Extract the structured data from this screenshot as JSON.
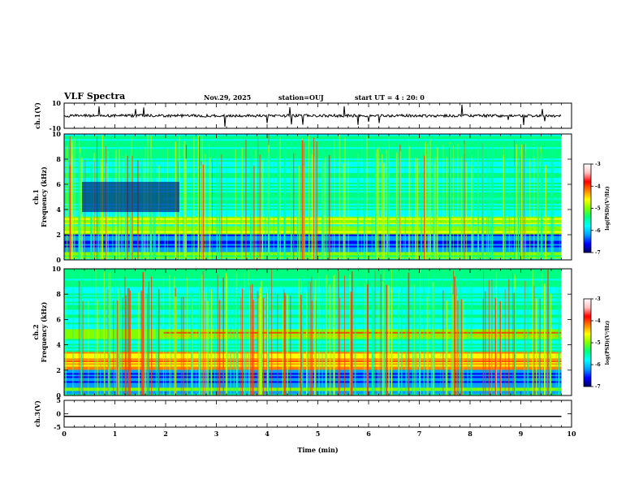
{
  "chart_data": {
    "type": "heatmap",
    "title": "VLF Spectra",
    "date": "Nov.29, 2025",
    "station": "station=OUJ",
    "start_ut": "start UT =   4 : 20: 0",
    "xlabel": "Time (min)",
    "xlim": [
      0,
      10
    ],
    "x_ticks": [
      "0",
      "1",
      "2",
      "3",
      "4",
      "5",
      "6",
      "7",
      "8",
      "9",
      "10"
    ],
    "panels": [
      {
        "id": "ch1-wave",
        "ylabel": "ch.1(V)",
        "ylim": [
          -10,
          10
        ],
        "y_ticks": [
          "10",
          "-10"
        ]
      },
      {
        "id": "ch1-spec",
        "ylabel_line1": "ch.1",
        "ylabel_line2": "Frequency (kHz)",
        "ylim": [
          0,
          10
        ],
        "y_ticks": [
          "0",
          "2",
          "4",
          "6",
          "8",
          "10"
        ],
        "bands_khz": [
          [
            2.2,
            3.3
          ],
          [
            4.6,
            5.1
          ]
        ]
      },
      {
        "id": "ch2-spec",
        "ylabel_line1": "ch.2",
        "ylabel_line2": "Frequency (kHz)",
        "ylim": [
          0,
          10
        ],
        "y_ticks": [
          "0",
          "2",
          "4",
          "6",
          "8",
          "10"
        ],
        "bands_khz": [
          [
            2.2,
            3.2
          ],
          [
            4.7,
            5.2
          ]
        ]
      },
      {
        "id": "ch3-wave",
        "ylabel": "ch.3(V)",
        "ylim": [
          -5,
          5
        ],
        "y_ticks": [
          "5",
          "0",
          "-5"
        ],
        "value_v": -1.0
      }
    ],
    "colorbar": {
      "label": "log(PSD)(V²/Hz)",
      "range": [
        -7,
        -3
      ],
      "ticks": [
        "-3",
        "-4",
        "-5",
        "-6",
        "-7"
      ],
      "colors": [
        "#000060",
        "#0000ff",
        "#00a0ff",
        "#00ffff",
        "#00ff80",
        "#80ff00",
        "#ffff00",
        "#ff8000",
        "#ff0000",
        "#ffc0c0",
        "#ffffff"
      ]
    },
    "data_end_min": 9.8
  }
}
